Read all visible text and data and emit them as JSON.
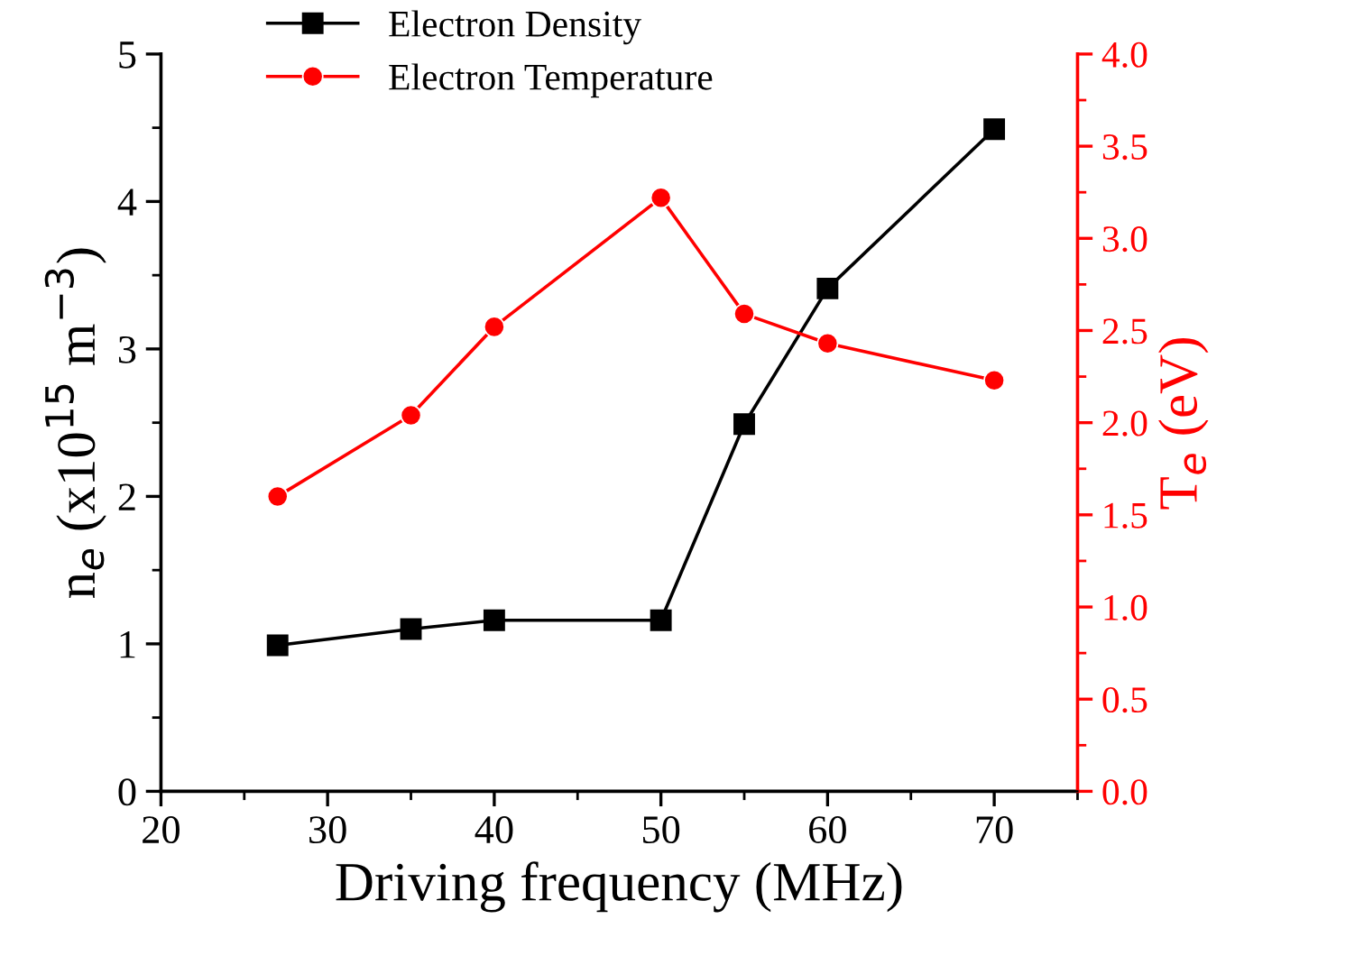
{
  "chart_data": {
    "type": "line",
    "xlabel": "Driving frequency (MHz)",
    "ylabel": "n$_{e}$ (x10$^{15}$ m$^{−3}$)",
    "y2label": "T$_{e}$ (eV)",
    "x": [
      27,
      35,
      40,
      50,
      55,
      60,
      70
    ],
    "series": [
      {
        "name": "Electron Density",
        "color": "#000000",
        "marker": "square",
        "values": [
          0.99,
          1.1,
          1.16,
          1.16,
          2.49,
          3.41,
          4.49
        ]
      },
      {
        "name": "Electron Temperature",
        "color": "#ff0000",
        "marker": "circle",
        "axis": "y2",
        "values": [
          1.6,
          2.04,
          2.52,
          3.22,
          2.59,
          2.43,
          2.23
        ]
      }
    ],
    "xlim": [
      20,
      75
    ],
    "xticks": [
      20,
      30,
      40,
      50,
      60,
      70
    ],
    "ylim": [
      0,
      5
    ],
    "yticks": [
      0,
      1,
      2,
      3,
      4,
      5
    ],
    "y2lim": [
      0,
      4
    ],
    "y2ticks": [
      {
        "value": 0,
        "label": "0.0"
      },
      {
        "value": 0.5,
        "label": "0.5"
      },
      {
        "value": 1,
        "label": "1.0"
      },
      {
        "value": 1.5,
        "label": "1.5"
      },
      {
        "value": 2,
        "label": "2.0"
      },
      {
        "value": 2.5,
        "label": "2.5"
      },
      {
        "value": 3,
        "label": "3.0"
      },
      {
        "value": 3.5,
        "label": "3.5"
      },
      {
        "value": 4,
        "label": "4.0"
      }
    ],
    "legend": "top left",
    "grid": false,
    "line_style": "solid"
  }
}
